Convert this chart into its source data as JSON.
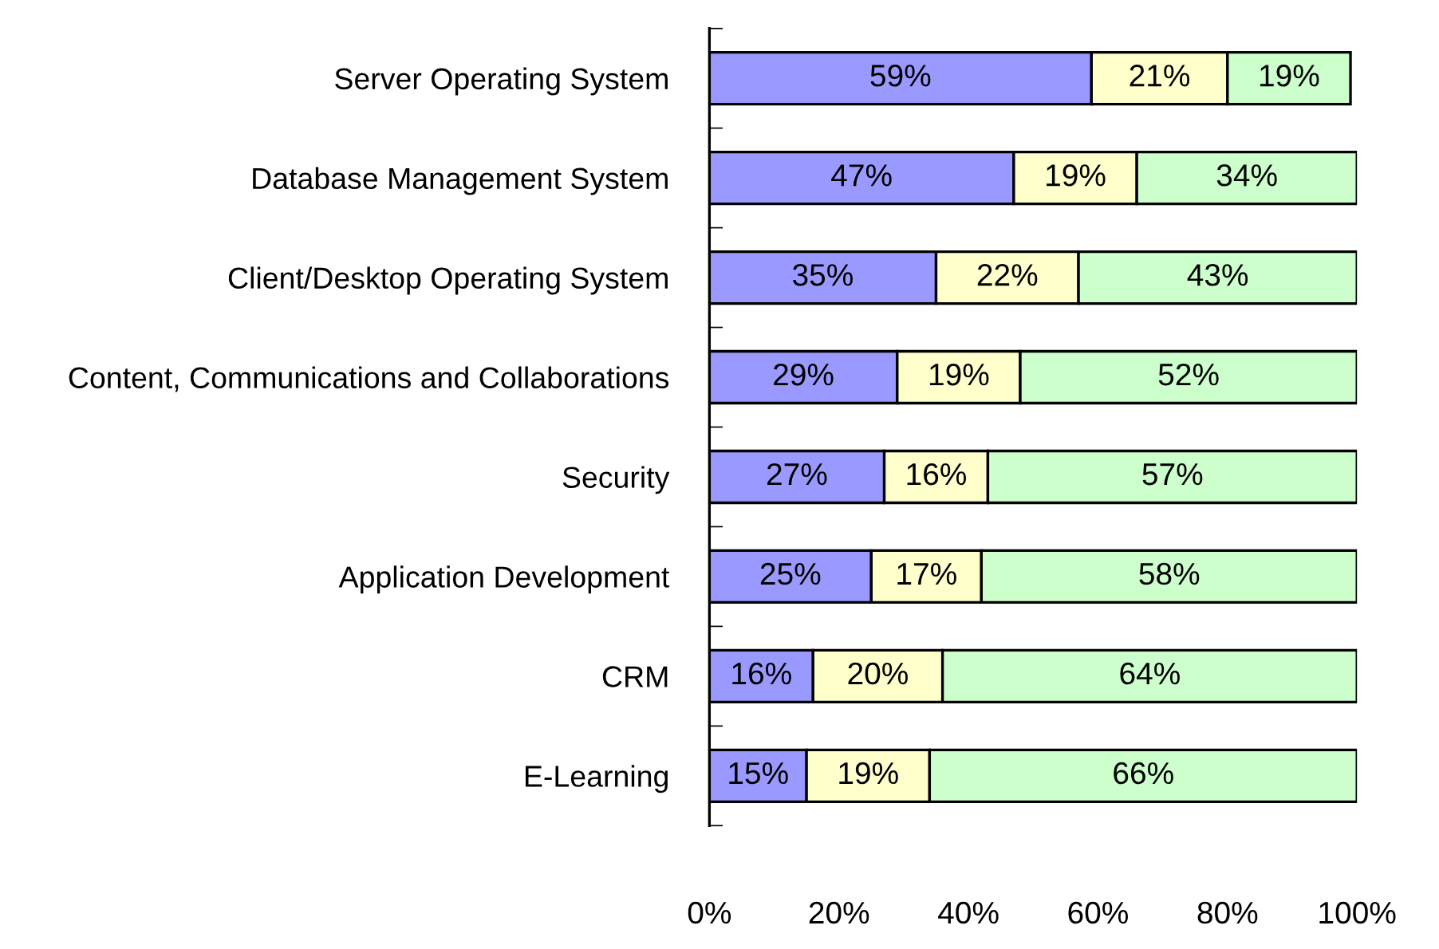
{
  "chart_data": {
    "type": "bar",
    "orientation": "horizontal",
    "stacked": true,
    "categories": [
      "Server Operating System",
      "Database Management System",
      "Client/Desktop Operating System",
      "Content, Communications and Collaborations",
      "Security",
      "Application Development",
      "CRM",
      "E-Learning"
    ],
    "series": [
      {
        "color": "#9999ff",
        "values": [
          59,
          47,
          35,
          29,
          27,
          25,
          16,
          15
        ],
        "value_labels": [
          "59%",
          "47%",
          "35%",
          "29%",
          "27%",
          "25%",
          "16%",
          "15%"
        ]
      },
      {
        "color": "#ffffcc",
        "values": [
          21,
          19,
          22,
          19,
          16,
          17,
          20,
          19
        ],
        "value_labels": [
          "21%",
          "19%",
          "22%",
          "19%",
          "16%",
          "17%",
          "20%",
          "19%"
        ]
      },
      {
        "color": "#ccffcc",
        "values": [
          19,
          34,
          43,
          52,
          57,
          58,
          64,
          66
        ],
        "value_labels": [
          "19%",
          "34%",
          "43%",
          "52%",
          "57%",
          "58%",
          "64%",
          "66%"
        ]
      }
    ],
    "xlim": [
      0,
      100
    ],
    "xticks": [
      {
        "value": 0,
        "label": "0%"
      },
      {
        "value": 20,
        "label": "20%"
      },
      {
        "value": 40,
        "label": "40%"
      },
      {
        "value": 60,
        "label": "60%"
      },
      {
        "value": 80,
        "label": "80%"
      },
      {
        "value": 100,
        "label": "100%"
      }
    ],
    "grid": false
  }
}
